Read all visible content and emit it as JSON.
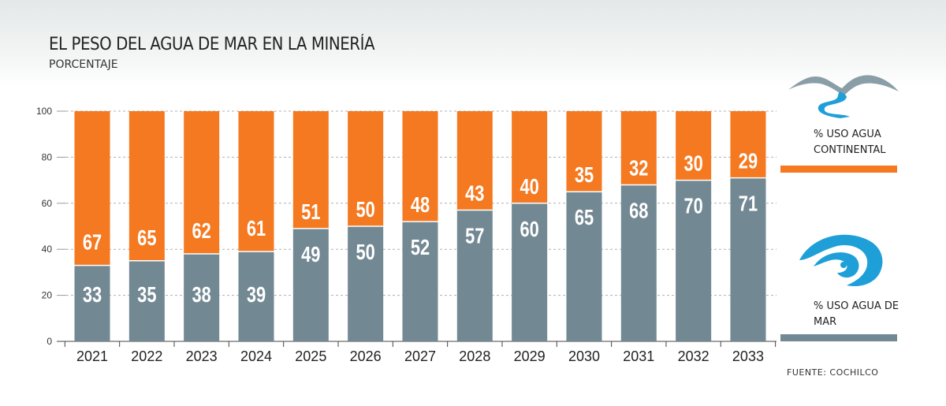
{
  "colors": {
    "continental": "#f47920",
    "sea": "#728893",
    "grid": "#b0b0b0",
    "icon_gray": "#8a9ea8",
    "icon_blue": "#1e9fd8"
  },
  "icons": {
    "continental": "mountain-river-icon",
    "sea": "wave-icon"
  },
  "chart_data": {
    "type": "bar",
    "stacked": true,
    "title": "EL PESO DEL AGUA DE MAR EN LA MINERÍA",
    "subtitle": "PORCENTAJE",
    "categories": [
      "2021",
      "2022",
      "2023",
      "2024",
      "2025",
      "2026",
      "2027",
      "2028",
      "2029",
      "2030",
      "2031",
      "2032",
      "2033"
    ],
    "series": [
      {
        "name": "% USO AGUA DE MAR",
        "values": [
          33,
          35,
          38,
          39,
          49,
          50,
          52,
          57,
          60,
          65,
          68,
          70,
          71
        ]
      },
      {
        "name": "% USO AGUA CONTINENTAL",
        "values": [
          67,
          65,
          62,
          61,
          51,
          50,
          48,
          43,
          40,
          35,
          32,
          30,
          29
        ]
      }
    ],
    "ylim": [
      0,
      100
    ],
    "yticks": [
      0,
      20,
      40,
      60,
      80,
      100
    ],
    "grid": true,
    "legend_position": "right",
    "source": "FUENTE: COCHILCO"
  }
}
